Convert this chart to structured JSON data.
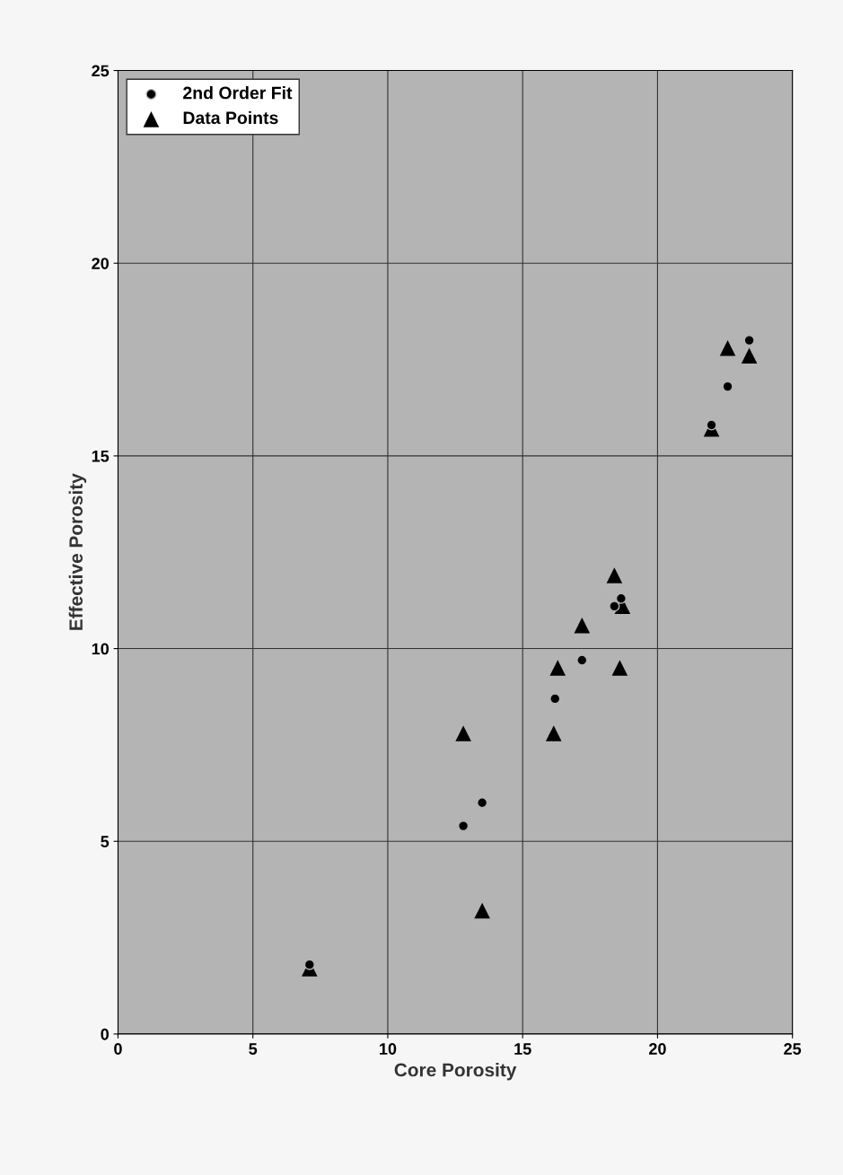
{
  "chart_data": {
    "type": "scatter",
    "xlabel": "Core Porosity",
    "ylabel": "Effective Porosity",
    "xlim": [
      0,
      25
    ],
    "ylim": [
      0,
      25
    ],
    "xticks": [
      0,
      5,
      10,
      15,
      20,
      25
    ],
    "yticks": [
      0,
      5,
      10,
      15,
      20,
      25
    ],
    "grid": true,
    "legend": "top left",
    "series": [
      {
        "name": "2nd Order Fit",
        "color": "#000000",
        "marker": "circle",
        "x": [
          23.4,
          22.6,
          22.0,
          18.65,
          18.4,
          17.2,
          16.2,
          13.5,
          12.8,
          7.1
        ],
        "values": [
          18.0,
          16.8,
          15.8,
          11.3,
          11.1,
          9.7,
          8.7,
          6.0,
          5.4,
          1.8
        ]
      },
      {
        "name": "Data Points",
        "color": "#000000",
        "marker": "triangle",
        "x": [
          23.4,
          22.6,
          22.0,
          18.4,
          18.6,
          18.7,
          17.2,
          16.3,
          16.15,
          12.8,
          13.5,
          7.1
        ],
        "values": [
          17.6,
          17.8,
          15.7,
          11.9,
          9.5,
          11.1,
          10.6,
          9.5,
          7.8,
          7.8,
          3.2,
          1.7
        ]
      }
    ]
  }
}
